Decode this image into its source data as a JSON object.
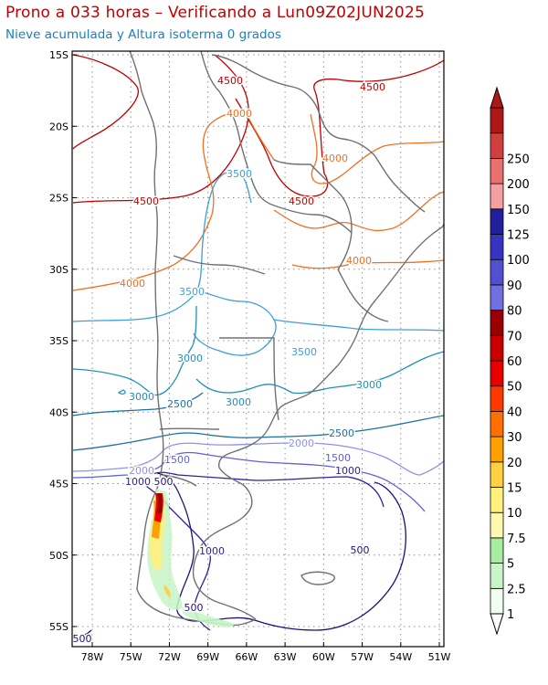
{
  "header": {
    "title": "Prono a 033 horas – Verificando a Lun09Z02JUN2025",
    "subtitle": "Nieve acumulada y Altura isoterma 0 grados"
  },
  "map": {
    "lat_ticks": [
      "15S",
      "20S",
      "25S",
      "30S",
      "35S",
      "40S",
      "45S",
      "50S",
      "55S"
    ],
    "lon_ticks": [
      "78W",
      "75W",
      "72W",
      "69W",
      "66W",
      "63W",
      "60W",
      "57W",
      "54W",
      "51W"
    ],
    "grid": true
  },
  "colorbar": {
    "levels": [
      "1",
      "2.5",
      "5",
      "7.5",
      "10",
      "15",
      "20",
      "30",
      "40",
      "50",
      "60",
      "70",
      "80",
      "90",
      "100",
      "125",
      "150",
      "200",
      "250"
    ],
    "colors": [
      "#f0fff0",
      "#c8f5c8",
      "#a8eca0",
      "#fff8b0",
      "#fff080",
      "#ffd040",
      "#ffa000",
      "#ff7000",
      "#ff3800",
      "#e80000",
      "#c80000",
      "#9a0000",
      "#7070e0",
      "#5050d0",
      "#3535c0",
      "#20209e",
      "#f5a0a0",
      "#e87070",
      "#d04040",
      "#b01818"
    ]
  },
  "contours": {
    "freezing_level_labels": [
      {
        "text": "4500",
        "color": "#c00000"
      },
      {
        "text": "4500",
        "color": "#c00000"
      },
      {
        "text": "4500",
        "color": "#c00000"
      },
      {
        "text": "4500",
        "color": "#c00000"
      },
      {
        "text": "4000",
        "color": "#f07020"
      },
      {
        "text": "4000",
        "color": "#f07020"
      },
      {
        "text": "4000",
        "color": "#f07020"
      },
      {
        "text": "4000",
        "color": "#f07020"
      },
      {
        "text": "3500",
        "color": "#3aa0d8"
      },
      {
        "text": "3500",
        "color": "#3aa0d8"
      },
      {
        "text": "3500",
        "color": "#3aa0d8"
      },
      {
        "text": "3000",
        "color": "#2090b8"
      },
      {
        "text": "3000",
        "color": "#2090b8"
      },
      {
        "text": "3000",
        "color": "#2090b8"
      },
      {
        "text": "3000",
        "color": "#2090b8"
      },
      {
        "text": "2500",
        "color": "#1a70a0"
      },
      {
        "text": "2500",
        "color": "#1a70a0"
      },
      {
        "text": "2000",
        "color": "#9090ee"
      },
      {
        "text": "2000",
        "color": "#9090ee"
      },
      {
        "text": "1500",
        "color": "#6060d8"
      },
      {
        "text": "1500",
        "color": "#6060d8"
      },
      {
        "text": "1000",
        "color": "#30209a"
      },
      {
        "text": "1000",
        "color": "#30209a"
      },
      {
        "text": "1000",
        "color": "#30209a"
      },
      {
        "text": "500",
        "color": "#20107a"
      },
      {
        "text": "500",
        "color": "#20107a"
      },
      {
        "text": "500",
        "color": "#20107a"
      },
      {
        "text": "500",
        "color": "#20107a"
      }
    ]
  }
}
